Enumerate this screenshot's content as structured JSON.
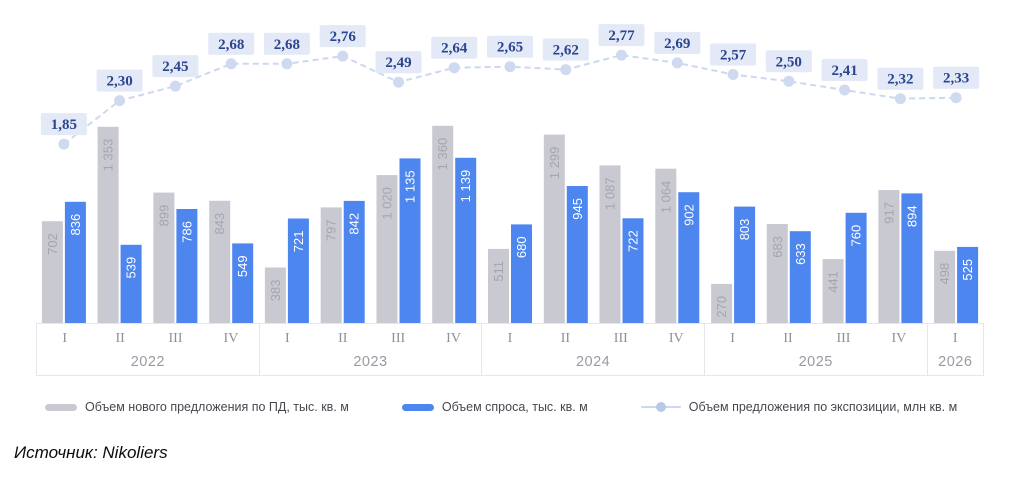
{
  "source": "Источник: Nikoliers",
  "colors": {
    "bar_new_supply": "#c9c9d1",
    "bar_new_supply_label": "#a5a5ae",
    "bar_demand": "#4c86ee",
    "bar_demand_label": "#ffffff",
    "line": "#ccd8ef",
    "line_marker": "#cfd9f0",
    "badge_bg": "#e3e9f6",
    "badge_text": "#2b4590"
  },
  "chart_data": {
    "type": "bar",
    "subtype": "grouped bars with overlaid line, value badges above line points",
    "groups": [
      {
        "year": "2022",
        "quarters": [
          "I",
          "II",
          "III",
          "IV"
        ]
      },
      {
        "year": "2023",
        "quarters": [
          "I",
          "II",
          "III",
          "IV"
        ]
      },
      {
        "year": "2024",
        "quarters": [
          "I",
          "II",
          "III",
          "IV"
        ]
      },
      {
        "year": "2025",
        "quarters": [
          "I",
          "II",
          "III",
          "IV"
        ]
      },
      {
        "year": "2026",
        "quarters": [
          "I"
        ]
      }
    ],
    "series": [
      {
        "name": "Объем нового предложения по ПД, тыс. кв. м",
        "type": "bar",
        "values": [
          702,
          1353,
          899,
          843,
          383,
          797,
          1020,
          1360,
          511,
          1299,
          1087,
          1064,
          270,
          683,
          441,
          917,
          498
        ]
      },
      {
        "name": "Объем спроса, тыс. кв. м",
        "type": "bar",
        "values": [
          836,
          539,
          786,
          549,
          721,
          842,
          1135,
          1139,
          680,
          945,
          722,
          902,
          803,
          633,
          760,
          894,
          525
        ]
      },
      {
        "name": "Объем предложения по экспозиции, млн кв. м",
        "type": "line",
        "values": [
          1.85,
          2.3,
          2.45,
          2.68,
          2.68,
          2.76,
          2.49,
          2.64,
          2.65,
          2.62,
          2.77,
          2.69,
          2.57,
          2.5,
          2.41,
          2.32,
          2.33
        ]
      }
    ],
    "legend_position": "bottom",
    "grid": false,
    "value_labels": "inside bar tops, rotated 90° (bottom-to-top)"
  }
}
